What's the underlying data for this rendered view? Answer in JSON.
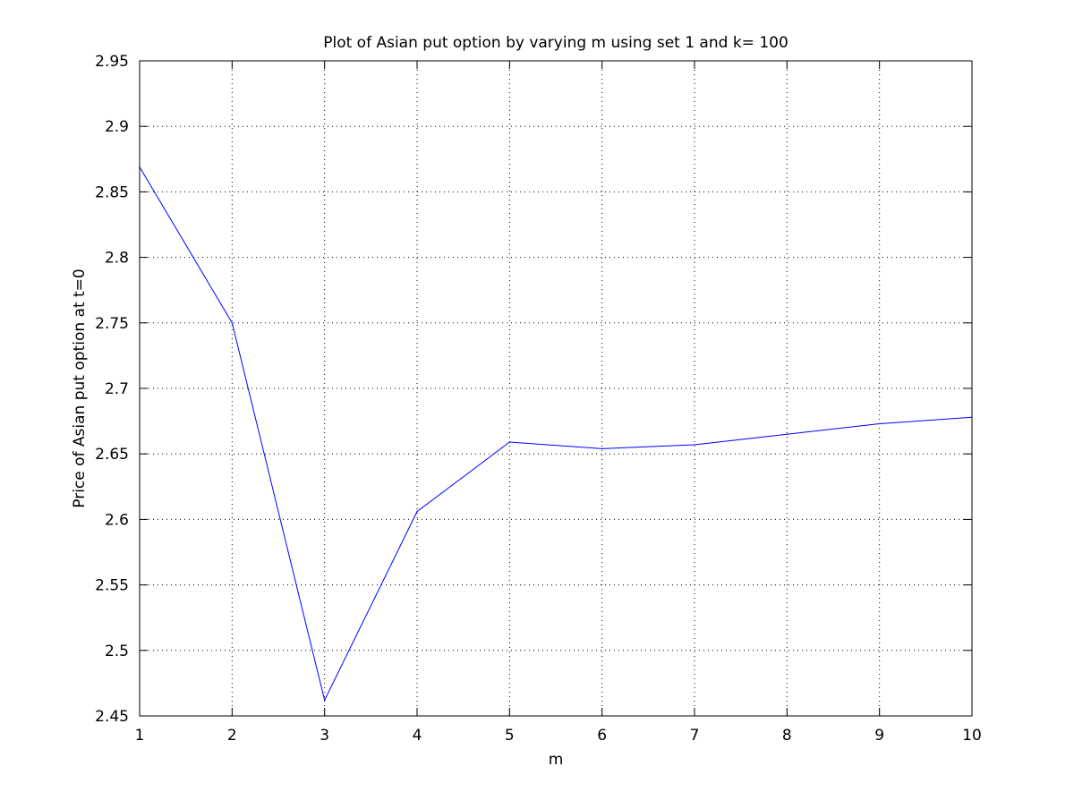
{
  "chart_data": {
    "type": "line",
    "title": "Plot of Asian put option by varying m using set 1 and k= 100",
    "xlabel": "m",
    "ylabel": "Price of Asian put option at t=0",
    "xlim": [
      1,
      10
    ],
    "ylim": [
      2.45,
      2.95
    ],
    "x_ticks": [
      1,
      2,
      3,
      4,
      5,
      6,
      7,
      8,
      9,
      10
    ],
    "x_tick_labels": [
      "1",
      "2",
      "3",
      "4",
      "5",
      "6",
      "7",
      "8",
      "9",
      "10"
    ],
    "y_ticks": [
      2.45,
      2.5,
      2.55,
      2.6,
      2.65,
      2.7,
      2.75,
      2.8,
      2.85,
      2.9,
      2.95
    ],
    "y_tick_labels": [
      "2.45",
      "2.5",
      "2.55",
      "2.6",
      "2.65",
      "2.7",
      "2.75",
      "2.8",
      "2.85",
      "2.9",
      "2.95"
    ],
    "grid": true,
    "series": [
      {
        "color": "#0000ff",
        "x": [
          1,
          2,
          3,
          4,
          5,
          6,
          7,
          8,
          9,
          10
        ],
        "y": [
          2.869,
          2.75,
          2.462,
          2.606,
          2.659,
          2.654,
          2.657,
          2.665,
          2.673,
          2.678
        ]
      }
    ]
  }
}
